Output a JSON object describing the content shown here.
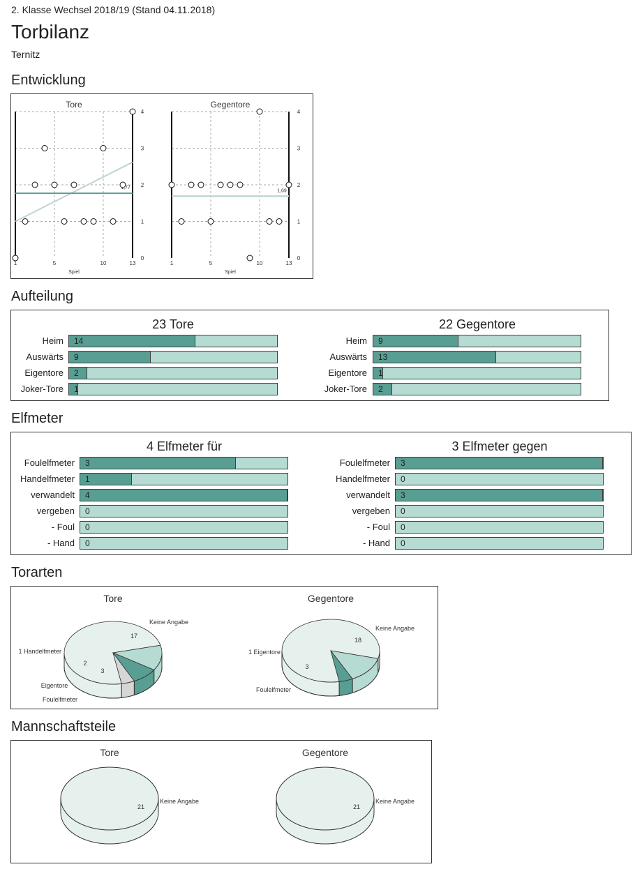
{
  "page": {
    "subtitle": "2. Klasse Wechsel 2018/19 (Stand 04.11.2018)",
    "title": "Torbilanz",
    "team": "Ternitz"
  },
  "sections": {
    "entwicklung": "Entwicklung",
    "aufteilung": "Aufteilung",
    "elfmeter": "Elfmeter",
    "torarten": "Torarten",
    "mannschaftsteile": "Mannschaftsteile"
  },
  "colors": {
    "dark": "#589e92",
    "light": "#b6dbd2",
    "pale": "#e6f1ee",
    "trend": "#bdd5d3",
    "avg": "#5a9f93"
  },
  "chart_data": [
    {
      "id": "entwicklung-tore",
      "type": "scatter",
      "title": "Tore",
      "xlabel": "Spiel",
      "xlim": [
        1,
        13
      ],
      "ylim": [
        0,
        4
      ],
      "xticks": [
        1,
        5,
        10,
        13
      ],
      "yticks": [
        0,
        1,
        2,
        3,
        4
      ],
      "x": [
        1,
        2,
        3,
        4,
        5,
        6,
        7,
        8,
        9,
        10,
        11,
        12,
        13
      ],
      "y": [
        0,
        1,
        2,
        3,
        2,
        1,
        2,
        1,
        1,
        3,
        1,
        2,
        4
      ],
      "average": 1.77,
      "average_label": "1,77",
      "trend": [
        1,
        2.62
      ]
    },
    {
      "id": "entwicklung-gegentore",
      "type": "scatter",
      "title": "Gegentore",
      "xlabel": "Spiel",
      "xlim": [
        1,
        13
      ],
      "ylim": [
        0,
        4
      ],
      "xticks": [
        1,
        5,
        10,
        13
      ],
      "yticks": [
        0,
        1,
        2,
        3,
        4
      ],
      "x": [
        1,
        2,
        3,
        4,
        5,
        6,
        7,
        8,
        9,
        10,
        11,
        12,
        13
      ],
      "y": [
        2,
        1,
        2,
        2,
        1,
        2,
        2,
        2,
        0,
        4,
        1,
        1,
        2
      ],
      "average": 1.69,
      "average_label": "1,69",
      "trend": [
        1.69,
        1.69
      ]
    },
    {
      "id": "aufteilung-tore",
      "type": "bar",
      "title": "23 Tore",
      "max": 23,
      "categories": [
        "Heim",
        "Auswärts",
        "Eigentore",
        "Joker-Tore"
      ],
      "values": [
        14,
        9,
        2,
        1
      ]
    },
    {
      "id": "aufteilung-gegentore",
      "type": "bar",
      "title": "22 Gegentore",
      "max": 22,
      "categories": [
        "Heim",
        "Auswärts",
        "Eigentore",
        "Joker-Tore"
      ],
      "values": [
        9,
        13,
        1,
        2
      ]
    },
    {
      "id": "elfmeter-fuer",
      "type": "bar",
      "title": "4 Elfmeter für",
      "max": 4,
      "categories": [
        "Foulelfmeter",
        "Handelfmeter",
        "verwandelt",
        "vergeben",
        "- Foul",
        "- Hand"
      ],
      "values": [
        3,
        1,
        4,
        0,
        0,
        0
      ]
    },
    {
      "id": "elfmeter-gegen",
      "type": "bar",
      "title": "3 Elfmeter gegen",
      "max": 3,
      "categories": [
        "Foulelfmeter",
        "Handelfmeter",
        "verwandelt",
        "vergeben",
        "- Foul",
        "- Hand"
      ],
      "values": [
        3,
        0,
        3,
        0,
        0,
        0
      ]
    },
    {
      "id": "torarten-tore",
      "type": "pie",
      "title": "Tore",
      "slices": [
        {
          "label": "Keine Angabe",
          "value": 17,
          "value_label": "17"
        },
        {
          "label": "Foulelfmeter",
          "value": 3,
          "value_label": "3"
        },
        {
          "label": "Eigentore",
          "value": 2,
          "value_label": "2"
        },
        {
          "label": "Handelfmeter",
          "value": 1,
          "value_label": "1"
        }
      ]
    },
    {
      "id": "torarten-gegentore",
      "type": "pie",
      "title": "Gegentore",
      "slices": [
        {
          "label": "Keine Angabe",
          "value": 18,
          "value_label": "18"
        },
        {
          "label": "Foulelfmeter",
          "value": 3,
          "value_label": "3"
        },
        {
          "label": "Eigentore",
          "value": 1,
          "value_label": "1"
        }
      ]
    },
    {
      "id": "mannschaftsteile-tore",
      "type": "pie",
      "title": "Tore",
      "slices": [
        {
          "label": "Keine Angabe",
          "value": 21,
          "value_label": "21"
        }
      ]
    },
    {
      "id": "mannschaftsteile-gegentore",
      "type": "pie",
      "title": "Gegentore",
      "slices": [
        {
          "label": "Keine Angabe",
          "value": 21,
          "value_label": "21"
        }
      ]
    }
  ]
}
